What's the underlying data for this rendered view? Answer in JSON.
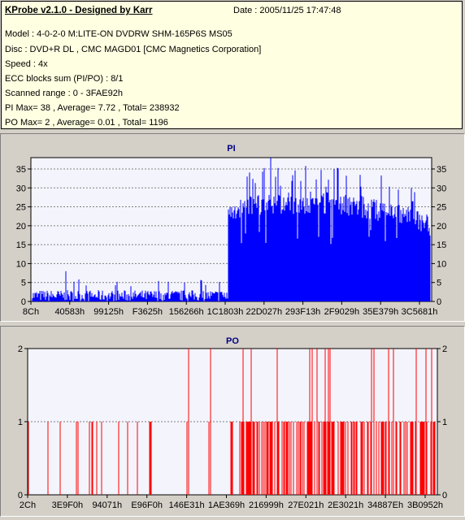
{
  "header": {
    "title": "KProbe v2.1.0 - Designed by Karr",
    "date": "Date : 2005/11/25 17:47:48",
    "lines": [
      "Model : 4-0-2-0 M:LITE-ON DVDRW SHM-165P6S MS05",
      "Disc : DVD+R DL , CMC MAGD01 [CMC Magnetics Corporation]",
      "Speed : 4x",
      "ECC blocks sum (PI/PO) : 8/1",
      "Scanned range : 0 - 3FAE92h",
      "PI Max= 38 , Average= 7.72 , Total= 238932",
      "PO Max= 2 , Average= 0.01 , Total= 1196"
    ]
  },
  "colors": {
    "pi": "#0000ff",
    "po": "#ff0000",
    "plot_bg": "#f4f4fc",
    "grid": "#808080",
    "title": "#00007f"
  },
  "chart_data": [
    {
      "type": "bar",
      "title": "PI",
      "ylim": [
        0,
        38
      ],
      "yticks": [
        0,
        5,
        10,
        15,
        20,
        25,
        30,
        35
      ],
      "xticks": [
        "8Ch",
        "40583h",
        "99125h",
        "F3625h",
        "156266h",
        "1C1803h",
        "22D027h",
        "293F13h",
        "2F9029h",
        "35E379h",
        "3C5681h"
      ],
      "grid": true,
      "segments": [
        {
          "range": [
            0,
            0.492
          ],
          "typical": [
            0,
            3
          ],
          "spikes": [
            8,
            6,
            5
          ]
        },
        {
          "range": [
            0.492,
            1.0
          ],
          "typical": [
            17,
            30
          ],
          "peak": 38
        }
      ],
      "max": 38,
      "average": 7.72
    },
    {
      "type": "bar",
      "title": "PO",
      "ylim": [
        0,
        2
      ],
      "yticks": [
        0,
        1,
        2
      ],
      "xticks": [
        "2Ch",
        "3E9F0h",
        "94071h",
        "E96F0h",
        "146E31h",
        "1AE369h",
        "216999h",
        "27E021h",
        "2E3021h",
        "34887Eh",
        "3B0952h"
      ],
      "grid": true,
      "max": 2,
      "average": 0.01
    }
  ]
}
